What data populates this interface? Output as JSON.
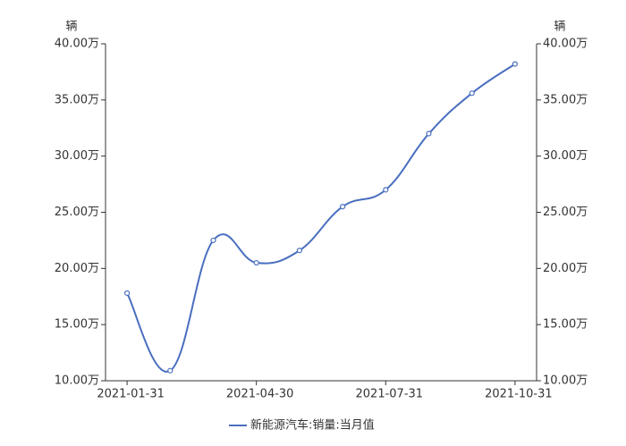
{
  "chart_data": {
    "type": "line",
    "y_axis_label": "辆",
    "y2_axis_label": "辆",
    "categories": [
      "2021-01-31",
      null,
      null,
      "2021-04-30",
      null,
      null,
      "2021-07-31",
      null,
      null,
      "2021-10-31"
    ],
    "series": [
      {
        "name": "新能源汽车:销量:当月值",
        "color": "#4a6fbf",
        "values": [
          17.8,
          10.9,
          22.5,
          20.5,
          21.6,
          25.5,
          27.0,
          32.0,
          35.6,
          38.2
        ]
      }
    ],
    "ylim": [
      10,
      40
    ],
    "yticks": [
      {
        "value": 10,
        "label": "10.00万"
      },
      {
        "value": 15,
        "label": "15.00万"
      },
      {
        "value": 20,
        "label": "20.00万"
      },
      {
        "value": 25,
        "label": "25.00万"
      },
      {
        "value": 30,
        "label": "30.00万"
      },
      {
        "value": 35,
        "label": "35.00万"
      },
      {
        "value": 40,
        "label": "40.00万"
      }
    ],
    "y2lim": [
      10,
      40
    ],
    "y2ticks": [
      {
        "value": 10,
        "label": "10.00万"
      },
      {
        "value": 15,
        "label": "15.00万"
      },
      {
        "value": 20,
        "label": "20.00万"
      },
      {
        "value": 25,
        "label": "25.00万"
      },
      {
        "value": 30,
        "label": "30.00万"
      },
      {
        "value": 35,
        "label": "35.00万"
      },
      {
        "value": 40,
        "label": "40.00万"
      }
    ],
    "smooth": true
  }
}
